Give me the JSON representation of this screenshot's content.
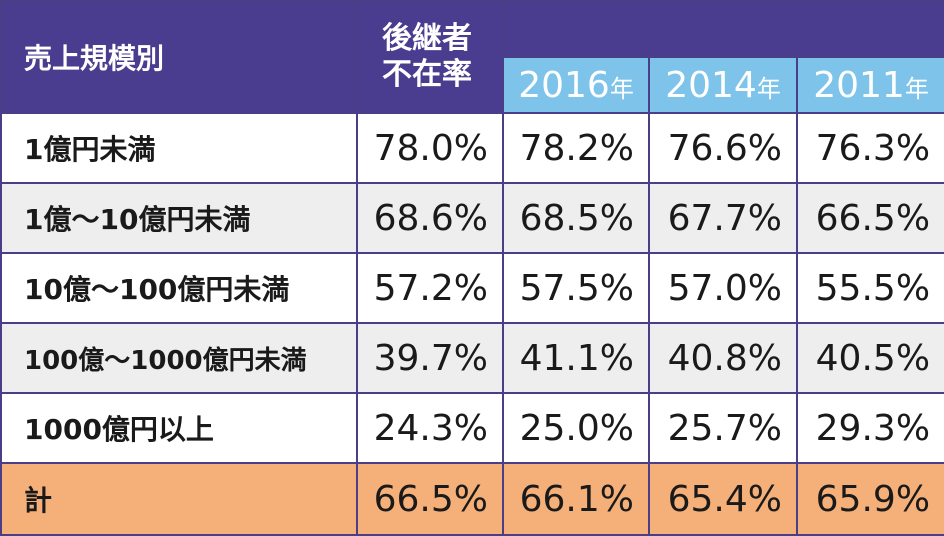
{
  "header": {
    "category_label": "売上規模別",
    "rate_label_line1": "後継者",
    "rate_label_line2": "不在率",
    "years": [
      {
        "year": "2016",
        "suffix": "年"
      },
      {
        "year": "2014",
        "suffix": "年"
      },
      {
        "year": "2011",
        "suffix": "年"
      }
    ]
  },
  "rows": [
    {
      "label": "1億円未満",
      "rate": "78.0%",
      "y2016": "78.2%",
      "y2014": "76.6%",
      "y2011": "76.3%"
    },
    {
      "label": "1億～10億円未満",
      "rate": "68.6%",
      "y2016": "68.5%",
      "y2014": "67.7%",
      "y2011": "66.5%"
    },
    {
      "label": "10億～100億円未満",
      "rate": "57.2%",
      "y2016": "57.5%",
      "y2014": "57.0%",
      "y2011": "55.5%"
    },
    {
      "label": "100億～1000億円未満",
      "rate": "39.7%",
      "y2016": "41.1%",
      "y2014": "40.8%",
      "y2011": "40.5%"
    },
    {
      "label": "1000億円以上",
      "rate": "24.3%",
      "y2016": "25.0%",
      "y2014": "25.7%",
      "y2011": "29.3%"
    }
  ],
  "total": {
    "label": "計",
    "rate": "66.5%",
    "y2016": "66.1%",
    "y2014": "65.4%",
    "y2011": "65.9%"
  },
  "colors": {
    "header_purple": "#4a3d8f",
    "header_blue": "#7ec4ea",
    "row_gray": "#eeeeee",
    "total_orange": "#f5b07a"
  }
}
